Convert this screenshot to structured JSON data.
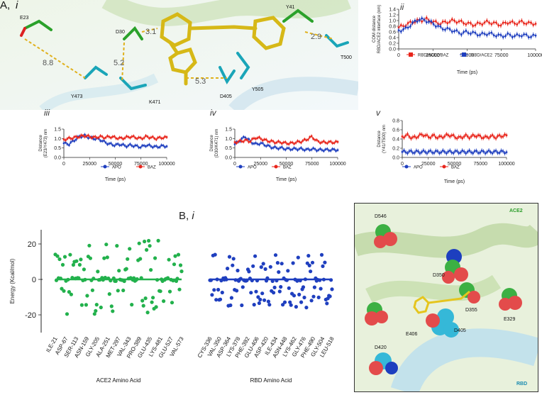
{
  "panel_A": {
    "label": "A,",
    "sub": "i",
    "molecule_labels": {
      "E23": "E23",
      "D30": "D30",
      "Y41": "Y41",
      "T500": "T500",
      "Y473": "Y473",
      "K471": "K471",
      "D405": "D405",
      "Y505": "Y505",
      "d1": "3.1",
      "d2": "8.8",
      "d3": "5.2",
      "d4": "5.3",
      "d5": "2.9"
    }
  },
  "panel_ii": {
    "sub": "ii",
    "ylabel_line1": "COM distance",
    "ylabel_line2": "RBD/ACE2 interface (nm)",
    "xlabel": "Time (ps)",
    "legend": [
      "RBD/ACE2/BAZ",
      "RBD/ACE2"
    ]
  },
  "panel_iii": {
    "sub": "iii",
    "ylabel_line1": "Distance",
    "ylabel_line2": "(E23/Y473) nm",
    "xlabel": "Time (ps)",
    "legend": [
      "APO",
      "BAZ"
    ]
  },
  "panel_iv": {
    "sub": "iv",
    "ylabel_line1": "Distance",
    "ylabel_line2": "(D30/K471) nm",
    "xlabel": "Time (ps)",
    "legend": [
      "APO",
      "BAZ"
    ]
  },
  "panel_v": {
    "sub": "v",
    "ylabel_line1": "Distance",
    "ylabel_line2": "(Y41/T500) nm",
    "xlabel": "Time (ps)",
    "legend": [
      "APO",
      "BAZ"
    ]
  },
  "panel_B": {
    "label": "B,",
    "sub": "i",
    "ylabel": "Energy (Kcal/mol)",
    "ace2_xlabel": "ACE2 Amino Acid",
    "rbd_xlabel": "RBD Amino Acid",
    "structure_labels": {
      "ACE2": "ACE2",
      "RBD": "RBD",
      "D546": "D546",
      "D350": "D350",
      "D355": "D355",
      "E329": "E329",
      "E406": "E406",
      "D405": "D405",
      "D420": "D420"
    }
  },
  "colors": {
    "ace2_green": "#22b14c",
    "rbd_blue": "#1f3fbf",
    "baz_red": "#e8251b",
    "apo_blue": "#1f3fbf"
  },
  "chart_data": [
    {
      "id": "ii",
      "type": "line",
      "title": "",
      "xlabel": "Time (ps)",
      "ylabel": "COM distance RBD/ACE2 interface (nm)",
      "xlim": [
        0,
        100000
      ],
      "ylim": [
        0.0,
        1.4
      ],
      "xticks": [
        0,
        25000,
        50000,
        75000,
        100000
      ],
      "yticks": [
        0.0,
        0.2,
        0.4,
        0.6,
        0.8,
        1.0,
        1.2,
        1.4
      ],
      "series": [
        {
          "name": "RBD/ACE2/BAZ",
          "color": "#e8251b",
          "x": [
            0,
            5000,
            10000,
            15000,
            20000,
            25000,
            30000,
            35000,
            40000,
            45000,
            50000,
            55000,
            60000,
            65000,
            70000,
            75000,
            80000,
            85000,
            90000,
            95000
          ],
          "values": [
            0.75,
            0.85,
            0.95,
            1.0,
            1.05,
            0.95,
            0.9,
            0.95,
            1.0,
            0.95,
            0.9,
            0.85,
            0.9,
            0.95,
            0.9,
            0.85,
            0.95,
            0.9,
            0.95,
            0.9
          ]
        },
        {
          "name": "RBD/ACE2",
          "color": "#1f3fbf",
          "x": [
            0,
            5000,
            10000,
            15000,
            20000,
            25000,
            30000,
            35000,
            40000,
            45000,
            50000,
            55000,
            60000,
            65000,
            70000,
            75000,
            80000,
            85000,
            90000,
            95000
          ],
          "values": [
            0.65,
            0.7,
            0.9,
            1.05,
            1.0,
            0.9,
            0.75,
            0.7,
            0.65,
            0.55,
            0.6,
            0.55,
            0.5,
            0.55,
            0.5,
            0.45,
            0.5,
            0.45,
            0.5,
            0.45
          ]
        }
      ]
    },
    {
      "id": "iii",
      "type": "line",
      "xlabel": "Time (ps)",
      "ylabel": "Distance (E23/Y473) nm",
      "xlim": [
        0,
        100000
      ],
      "ylim": [
        0.0,
        1.5
      ],
      "xticks": [
        0,
        25000,
        50000,
        75000,
        100000
      ],
      "yticks": [
        0.0,
        0.5,
        1.0,
        1.5
      ],
      "series": [
        {
          "name": "APO",
          "color": "#1f3fbf",
          "x": [
            0,
            5000,
            10000,
            15000,
            20000,
            25000,
            30000,
            35000,
            40000,
            45000,
            50000,
            55000,
            60000,
            65000,
            70000,
            75000,
            80000,
            85000,
            90000,
            95000
          ],
          "values": [
            0.75,
            0.7,
            0.9,
            1.1,
            1.15,
            1.05,
            1.0,
            0.95,
            0.8,
            0.7,
            0.65,
            0.7,
            0.6,
            0.65,
            0.6,
            0.55,
            0.65,
            0.6,
            0.55,
            0.6
          ]
        },
        {
          "name": "BAZ",
          "color": "#e8251b",
          "x": [
            0,
            5000,
            10000,
            15000,
            20000,
            25000,
            30000,
            35000,
            40000,
            45000,
            50000,
            55000,
            60000,
            65000,
            70000,
            75000,
            80000,
            85000,
            90000,
            95000
          ],
          "values": [
            0.95,
            1.0,
            1.05,
            1.1,
            1.15,
            1.1,
            1.05,
            1.1,
            1.05,
            1.1,
            1.05,
            1.0,
            1.05,
            1.1,
            1.05,
            1.0,
            1.1,
            1.05,
            1.0,
            1.05
          ]
        }
      ]
    },
    {
      "id": "iv",
      "type": "line",
      "xlabel": "Time (ps)",
      "ylabel": "Distance (D30/K471) nm",
      "xlim": [
        0,
        100000
      ],
      "ylim": [
        0.0,
        1.5
      ],
      "xticks": [
        0,
        25000,
        50000,
        75000,
        100000
      ],
      "yticks": [
        0.0,
        0.5,
        1.0,
        1.5
      ],
      "series": [
        {
          "name": "APO",
          "color": "#1f3fbf",
          "x": [
            0,
            5000,
            10000,
            15000,
            20000,
            25000,
            30000,
            35000,
            40000,
            45000,
            50000,
            55000,
            60000,
            65000,
            70000,
            75000,
            80000,
            85000,
            90000,
            95000
          ],
          "values": [
            0.7,
            0.9,
            1.1,
            0.85,
            0.7,
            0.75,
            0.65,
            0.55,
            0.5,
            0.5,
            0.45,
            0.45,
            0.45,
            0.45,
            0.4,
            0.45,
            0.4,
            0.4,
            0.4,
            0.4
          ]
        },
        {
          "name": "BAZ",
          "color": "#e8251b",
          "x": [
            0,
            5000,
            10000,
            15000,
            20000,
            25000,
            30000,
            35000,
            40000,
            45000,
            50000,
            55000,
            60000,
            65000,
            70000,
            75000,
            80000,
            85000,
            90000,
            95000
          ],
          "values": [
            0.8,
            0.85,
            0.9,
            0.85,
            1.05,
            1.0,
            0.9,
            0.85,
            0.8,
            0.8,
            0.75,
            0.75,
            0.8,
            0.85,
            0.95,
            1.1,
            0.85,
            0.8,
            0.8,
            0.8
          ]
        }
      ]
    },
    {
      "id": "v",
      "type": "line",
      "xlabel": "Time (ps)",
      "ylabel": "Distance (Y41/T500) nm",
      "xlim": [
        0,
        100000
      ],
      "ylim": [
        0.0,
        0.8
      ],
      "xticks": [
        0,
        25000,
        50000,
        75000,
        100000
      ],
      "yticks": [
        0.0,
        0.2,
        0.4,
        0.6,
        0.8
      ],
      "series": [
        {
          "name": "APO",
          "color": "#1f3fbf",
          "x": [
            0,
            5000,
            10000,
            15000,
            20000,
            25000,
            30000,
            35000,
            40000,
            45000,
            50000,
            55000,
            60000,
            65000,
            70000,
            75000,
            80000,
            85000,
            90000,
            95000
          ],
          "values": [
            0.12,
            0.12,
            0.12,
            0.12,
            0.12,
            0.12,
            0.12,
            0.12,
            0.12,
            0.12,
            0.12,
            0.12,
            0.12,
            0.12,
            0.12,
            0.12,
            0.12,
            0.12,
            0.12,
            0.12
          ]
        },
        {
          "name": "BAZ",
          "color": "#e8251b",
          "x": [
            0,
            5000,
            10000,
            15000,
            20000,
            25000,
            30000,
            35000,
            40000,
            45000,
            50000,
            55000,
            60000,
            65000,
            70000,
            75000,
            80000,
            85000,
            90000,
            95000
          ],
          "values": [
            0.45,
            0.48,
            0.42,
            0.46,
            0.5,
            0.44,
            0.47,
            0.43,
            0.46,
            0.49,
            0.45,
            0.42,
            0.47,
            0.44,
            0.48,
            0.45,
            0.43,
            0.46,
            0.44,
            0.47
          ]
        }
      ]
    },
    {
      "id": "B_ace2",
      "type": "scatter",
      "xlabel": "ACE2 Amino Acid",
      "ylabel": "Energy (Kcal/mol)",
      "ylim": [
        -30,
        28
      ],
      "yticks": [
        -20,
        0,
        20
      ],
      "categories": [
        "ILE-21",
        "ASP-67",
        "SER-113",
        "ASN-159",
        "GLY-205",
        "ALA-251",
        "MET-297",
        "VAL-343",
        "PRO-389",
        "GLU-435",
        "LYS-481",
        "GLU-527",
        "VAL-573"
      ],
      "color": "#22b14c"
    },
    {
      "id": "B_rbd",
      "type": "scatter",
      "xlabel": "RBD Amino Acid",
      "ylabel": "Energy (Kcal/mol)",
      "ylim": [
        -30,
        28
      ],
      "yticks": [
        -20,
        0,
        20
      ],
      "categories": [
        "CYS-336",
        "VAL-350",
        "ASP-364",
        "LYS-378",
        "PHE-392",
        "GLU-406",
        "ASP-420",
        "ILE-434",
        "ASN-448",
        "LYS-462",
        "GLY-476",
        "PHE-490",
        "GLY-504",
        "LEU-518"
      ],
      "color": "#1f3fbf"
    }
  ]
}
